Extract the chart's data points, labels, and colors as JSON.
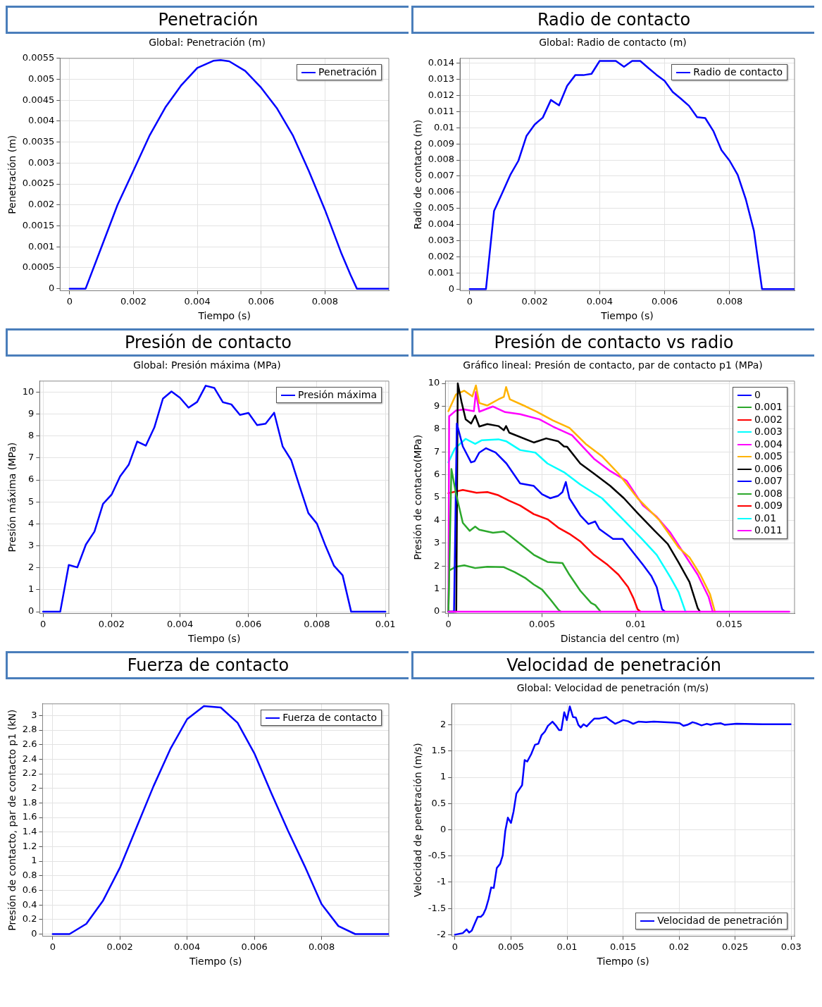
{
  "chart_data": [
    {
      "type": "line",
      "title": "Penetración",
      "subtitle": "Global: Penetración (m)",
      "xlabel": "Tiempo (s)",
      "ylabel": "Penetración (m)",
      "x": [
        0,
        0.0005,
        0.001,
        0.0015,
        0.002,
        0.0025,
        0.003,
        0.0035,
        0.004,
        0.0045,
        0.00473,
        0.005,
        0.0055,
        0.006,
        0.0065,
        0.007,
        0.0075,
        0.008,
        0.0085,
        0.0088,
        0.009,
        0.01
      ],
      "series": [
        {
          "name": "Penetración",
          "color": "#0000ff",
          "values": [
            0,
            0,
            0.001,
            0.002,
            0.00282,
            0.00365,
            0.00433,
            0.00486,
            0.00527,
            0.00544,
            0.00546,
            0.00543,
            0.0052,
            0.0048,
            0.0043,
            0.00365,
            0.0028,
            0.00188,
            0.00087,
            0.00033,
            0,
            0
          ]
        }
      ],
      "xlim": [
        -0.0003,
        0.01
      ],
      "ylim": [
        -5e-05,
        0.0055
      ],
      "xticks": [
        0,
        0.002,
        0.004,
        0.006,
        0.008
      ],
      "yticks": [
        0,
        0.0005,
        0.001,
        0.0015,
        0.002,
        0.0025,
        0.003,
        0.0035,
        0.004,
        0.0045,
        0.005,
        0.0055
      ],
      "grid": true,
      "legend": "top right",
      "marker": "none",
      "line_style": "solid"
    },
    {
      "type": "line",
      "title": "Radio de contacto",
      "subtitle": "Global: Radio de contacto (m)",
      "xlabel": "Tiempo (s)",
      "ylabel": "Radio de contacto (m)",
      "x": [
        0,
        0.0005,
        0.00075,
        0.001,
        0.00125,
        0.0015,
        0.00175,
        0.002,
        0.00225,
        0.0025,
        0.00275,
        0.003,
        0.00325,
        0.0035,
        0.00375,
        0.004,
        0.00425,
        0.0045,
        0.00475,
        0.005,
        0.00525,
        0.0055,
        0.00575,
        0.006,
        0.00625,
        0.0065,
        0.00675,
        0.007,
        0.00725,
        0.0075,
        0.00775,
        0.008,
        0.00825,
        0.0085,
        0.00875,
        0.009,
        0.01
      ],
      "series": [
        {
          "name": "Radio de contacto",
          "color": "#0000ff",
          "values": [
            0,
            0,
            0.00485,
            0.00595,
            0.00708,
            0.00796,
            0.0095,
            0.0102,
            0.01063,
            0.01172,
            0.01139,
            0.0126,
            0.01326,
            0.01326,
            0.01334,
            0.01414,
            0.01414,
            0.01414,
            0.01378,
            0.01414,
            0.01414,
            0.0137,
            0.01328,
            0.0129,
            0.01222,
            0.0118,
            0.01136,
            0.01066,
            0.0106,
            0.0098,
            0.00862,
            0.00796,
            0.00708,
            0.00557,
            0.00361,
            0,
            0
          ]
        }
      ],
      "xlim": [
        -0.0003,
        0.01
      ],
      "ylim": [
        -0.0001,
        0.0143
      ],
      "xticks": [
        0,
        0.002,
        0.004,
        0.006,
        0.008
      ],
      "yticks": [
        0,
        0.001,
        0.002,
        0.003,
        0.004,
        0.005,
        0.006,
        0.007,
        0.008,
        0.009,
        0.01,
        0.011,
        0.012,
        0.013,
        0.014
      ],
      "grid": true,
      "legend": "top right",
      "marker": "none",
      "line_style": "solid"
    },
    {
      "type": "line",
      "title": "Presión de contacto",
      "subtitle": "Global: Presión máxima (MPa)",
      "xlabel": "Tiempo (s)",
      "ylabel": "Presión máxima (MPa)",
      "x": [
        0,
        0.00025,
        0.0005,
        0.00075,
        0.001,
        0.00125,
        0.0015,
        0.00175,
        0.002,
        0.00225,
        0.0025,
        0.00275,
        0.003,
        0.00325,
        0.0035,
        0.00375,
        0.004,
        0.00425,
        0.0045,
        0.00475,
        0.005,
        0.00525,
        0.0055,
        0.00575,
        0.006,
        0.00625,
        0.0065,
        0.00675,
        0.007,
        0.00725,
        0.0075,
        0.00775,
        0.008,
        0.00825,
        0.0085,
        0.00875,
        0.009,
        0.01
      ],
      "series": [
        {
          "name": "Presión máxima",
          "color": "#0000ff",
          "values": [
            0,
            0,
            0,
            2.13,
            2.02,
            3.06,
            3.65,
            4.91,
            5.33,
            6.16,
            6.69,
            7.75,
            7.56,
            8.39,
            9.7,
            10.03,
            9.74,
            9.29,
            9.55,
            10.29,
            10.19,
            9.54,
            9.44,
            8.96,
            9.05,
            8.5,
            8.56,
            9.06,
            7.52,
            6.9,
            5.68,
            4.49,
            4.01,
            3,
            2.09,
            1.66,
            0,
            0
          ]
        }
      ],
      "xlim": [
        -0.0001,
        0.0101
      ],
      "ylim": [
        -0.08,
        10.5
      ],
      "xticks": [
        0,
        0.002,
        0.004,
        0.006,
        0.008,
        0.01
      ],
      "yticks": [
        0,
        1,
        2,
        3,
        4,
        5,
        6,
        7,
        8,
        9,
        10
      ],
      "grid": true,
      "legend": "top right",
      "marker": "none",
      "line_style": "solid"
    },
    {
      "type": "line",
      "title": "Presión de contacto vs radio",
      "subtitle": "Gráfico lineal: Presión de contacto, par de contacto p1 (MPa)",
      "xlabel": "Distancia del centro (m)",
      "ylabel": "Presión de contacto(MPa)",
      "series": [
        {
          "name": "0",
          "color": "#0000ff"
        },
        {
          "name": "0.001",
          "color": "#2ca82c",
          "x": [
            0,
            4e-05,
            0.0004,
            0.00085,
            0.00143,
            0.00208,
            0.00296,
            0.00354,
            0.00413,
            0.00456,
            0.005,
            0.00544,
            0.00587,
            0.006
          ],
          "values": [
            0,
            1.8,
            1.97,
            2.03,
            1.91,
            1.97,
            1.95,
            1.73,
            1.46,
            1.19,
            0.97,
            0.54,
            0.09,
            0
          ]
        },
        {
          "name": "0.002",
          "color": "#ff0000",
          "x": [
            0,
            0.00077,
            0.0015,
            0.00208,
            0.00267,
            0.00325,
            0.00383,
            0.00456,
            0.00529,
            0.00587,
            0.00646,
            0.00704,
            0.00777,
            0.0085,
            0.00908,
            0.00959,
            0.00988,
            0.0101,
            0.01025
          ],
          "values": [
            5.19,
            5.33,
            5.21,
            5.24,
            5.1,
            4.86,
            4.65,
            4.27,
            4.05,
            3.68,
            3.41,
            3.08,
            2.49,
            2.05,
            1.62,
            1.08,
            0.59,
            0.11,
            0
          ]
        },
        {
          "name": "0.003",
          "color": "#00ffff",
          "x": [
            0,
            0.00034,
            0.00092,
            0.00143,
            0.00179,
            0.00267,
            0.0031,
            0.00383,
            0.00464,
            0.00529,
            0.00617,
            0.00704,
            0.0082,
            0.00937,
            0.01039,
            0.01112,
            0.01185,
            0.01229,
            0.01265,
            0.0127
          ],
          "values": [
            6.54,
            7.14,
            7.57,
            7.35,
            7.51,
            7.55,
            7.46,
            7.08,
            6.97,
            6.49,
            6.11,
            5.57,
            4.97,
            4,
            3.14,
            2.49,
            1.51,
            0.86,
            0.02,
            0
          ]
        },
        {
          "name": "0.004",
          "color": "#ff00ff",
          "x": [
            0,
            4e-05,
            0.0004,
            0.00085,
            0.00136,
            0.00147,
            0.00165,
            0.00238,
            0.00303,
            0.00383,
            0.00485,
            0.00558,
            0.0066,
            0.00777,
            0.00864,
            0.00952,
            0.01039,
            0.01112,
            0.01185,
            0.01258,
            0.01331,
            0.01389,
            0.01411
          ],
          "values": [
            0,
            8.56,
            8.81,
            8.86,
            8.78,
            9.62,
            8.76,
            8.99,
            8.74,
            8.65,
            8.43,
            8.11,
            7.73,
            6.7,
            6.16,
            5.73,
            4.65,
            4.16,
            3.46,
            2.54,
            1.62,
            0.65,
            0
          ]
        },
        {
          "name": "0.005",
          "color": "#ffb300",
          "x": [
            0,
            0.0004,
            0.00085,
            0.00128,
            0.00147,
            0.00165,
            0.00208,
            0.00267,
            0.00296,
            0.00308,
            0.00328,
            0.00413,
            0.00471,
            0.00558,
            0.00646,
            0.00733,
            0.0082,
            0.00908,
            0.0101,
            0.01127,
            0.01229,
            0.01287,
            0.01345,
            0.01397,
            0.01423
          ],
          "values": [
            8.78,
            9.51,
            9.68,
            9.43,
            9.91,
            9.14,
            9.03,
            9.3,
            9.41,
            9.84,
            9.3,
            8.99,
            8.76,
            8.38,
            8.05,
            7.35,
            6.81,
            6.05,
            4.97,
            4,
            2.81,
            2.38,
            1.62,
            0.76,
            0
          ]
        },
        {
          "name": "0.006",
          "color": "#000000",
          "x": [
            0,
            0.00042,
            0.0005,
            0.0007,
            0.00092,
            0.00121,
            0.00143,
            0.00165,
            0.00208,
            0.00267,
            0.00296,
            0.00308,
            0.00325,
            0.00456,
            0.00522,
            0.00587,
            0.00617,
            0.00634,
            0.00704,
            0.00777,
            0.00864,
            0.00937,
            0.0101,
            0.01098,
            0.01171,
            0.01229,
            0.01287,
            0.01331,
            0.01343
          ],
          "values": [
            0,
            0,
            10,
            9.19,
            8.43,
            8.24,
            8.59,
            8.11,
            8.22,
            8.13,
            7.95,
            8.13,
            7.84,
            7.41,
            7.59,
            7.46,
            7.24,
            7.22,
            6.49,
            6.05,
            5.51,
            4.97,
            4.32,
            3.57,
            2.97,
            2.16,
            1.3,
            0.16,
            0
          ]
        },
        {
          "name": "0.007",
          "color": "#0000ff",
          "x": [
            0,
            0.0003,
            0.00045,
            0.00077,
            0.00121,
            0.0014,
            0.00165,
            0.00201,
            0.00252,
            0.0031,
            0.00383,
            0.00456,
            0.005,
            0.00544,
            0.00587,
            0.00609,
            0.00627,
            0.00646,
            0.00704,
            0.00748,
            0.00784,
            0.00806,
            0.00879,
            0.0093,
            0.00966,
            0.01039,
            0.01083,
            0.01112,
            0.01141,
            0.01156
          ],
          "values": [
            0,
            0,
            8.24,
            7.24,
            6.54,
            6.59,
            6.97,
            7.16,
            6.97,
            6.49,
            5.62,
            5.51,
            5.14,
            4.97,
            5.08,
            5.24,
            5.68,
            4.97,
            4.22,
            3.84,
            3.95,
            3.62,
            3.19,
            3.19,
            2.81,
            2.05,
            1.57,
            1.08,
            0.11,
            0
          ]
        },
        {
          "name": "0.008",
          "color": "#2ca82c",
          "x": [
            0,
            0.00016,
            0.0004,
            0.00077,
            0.00114,
            0.00143,
            0.00165,
            0.00238,
            0.00296,
            0.00325,
            0.00383,
            0.00456,
            0.00529,
            0.00609,
            0.00646,
            0.00704,
            0.00762,
            0.00784,
            0.00813
          ],
          "values": [
            0,
            6.25,
            5.19,
            3.89,
            3.54,
            3.73,
            3.59,
            3.46,
            3.51,
            3.35,
            2.97,
            2.49,
            2.18,
            2.13,
            1.62,
            0.92,
            0.38,
            0.29,
            0
          ]
        },
        {
          "name": "0.009",
          "color": "#ff0000"
        },
        {
          "name": "0.01",
          "color": "#00ffff"
        },
        {
          "name": "0.011",
          "color": "#ff00ff",
          "x": [
            0,
            0.0182
          ],
          "values": [
            0,
            0
          ]
        }
      ],
      "xlim": [
        -0.00016,
        0.01848
      ],
      "ylim": [
        -0.08,
        10.1
      ],
      "xticks": [
        0,
        0.005,
        0.01,
        0.015
      ],
      "yticks": [
        0,
        1,
        2,
        3,
        4,
        5,
        6,
        7,
        8,
        9,
        10
      ],
      "grid": true,
      "legend": "top right",
      "marker": "none",
      "line_style": "solid"
    },
    {
      "type": "line",
      "title": "Fuerza de contacto",
      "xlabel": "Tiempo (s)",
      "ylabel": "Presión de contacto, par de contacto p1 (kN)",
      "x": [
        0,
        0.0005,
        0.001,
        0.0015,
        0.002,
        0.0025,
        0.003,
        0.0035,
        0.004,
        0.0045,
        0.005,
        0.0055,
        0.006,
        0.0065,
        0.007,
        0.0075,
        0.008,
        0.0085,
        0.009,
        0.01
      ],
      "series": [
        {
          "name": "Fuerza de contacto",
          "color": "#0000ff",
          "values": [
            0,
            0,
            0.14,
            0.46,
            0.91,
            1.47,
            2.03,
            2.54,
            2.95,
            3.13,
            3.11,
            2.9,
            2.48,
            1.94,
            1.42,
            0.93,
            0.41,
            0.11,
            0,
            0
          ]
        }
      ],
      "xlim": [
        -0.0003,
        0.01
      ],
      "ylim": [
        -0.03,
        3.16
      ],
      "xticks": [
        0,
        0.002,
        0.004,
        0.006,
        0.008
      ],
      "yticks": [
        0,
        0.2,
        0.4,
        0.6,
        0.8,
        1,
        1.2,
        1.4,
        1.6,
        1.8,
        2,
        2.2,
        2.4,
        2.6,
        2.8,
        3
      ],
      "grid": true,
      "legend": "top right",
      "marker": "none",
      "line_style": "solid"
    },
    {
      "type": "line",
      "title": "Velocidad de penetración",
      "subtitle": "Global: Velocidad de penetración (m/s)",
      "xlabel": "Tiempo (s)",
      "ylabel": "Velocidad de penetración (m/s)",
      "x": [
        0,
        0.0007,
        0.00104,
        0.00127,
        0.0015,
        0.00184,
        0.00203,
        0.0023,
        0.00253,
        0.00276,
        0.003,
        0.00323,
        0.00346,
        0.00373,
        0.00403,
        0.00426,
        0.00449,
        0.00472,
        0.005,
        0.00523,
        0.00548,
        0.00599,
        0.00622,
        0.00645,
        0.0068,
        0.00714,
        0.00744,
        0.00772,
        0.00802,
        0.00829,
        0.0087,
        0.00899,
        0.00929,
        0.00949,
        0.00975,
        0.00998,
        0.01025,
        0.01053,
        0.01078,
        0.01101,
        0.01122,
        0.01147,
        0.01175,
        0.0121,
        0.01244,
        0.0129,
        0.01348,
        0.01382,
        0.01429,
        0.01463,
        0.01502,
        0.01544,
        0.0159,
        0.01636,
        0.01705,
        0.01774,
        0.01866,
        0.01959,
        0.02005,
        0.02039,
        0.02074,
        0.0212,
        0.02154,
        0.022,
        0.02247,
        0.02281,
        0.02316,
        0.02373,
        0.02408,
        0.02512,
        0.02742,
        0.02995
      ],
      "series": [
        {
          "name": "Velocidad de penetración",
          "color": "#0000ff",
          "values": [
            -2,
            -1.97,
            -1.9,
            -1.96,
            -1.92,
            -1.75,
            -1.66,
            -1.66,
            -1.61,
            -1.5,
            -1.32,
            -1.1,
            -1.11,
            -0.73,
            -0.65,
            -0.49,
            -0.02,
            0.23,
            0.13,
            0.35,
            0.69,
            0.85,
            1.33,
            1.3,
            1.44,
            1.62,
            1.64,
            1.8,
            1.87,
            1.98,
            2.06,
            1.99,
            1.9,
            1.9,
            2.24,
            2.09,
            2.35,
            2.15,
            2.14,
            2,
            1.95,
            2.01,
            1.97,
            2.05,
            2.12,
            2.12,
            2.15,
            2.09,
            2.02,
            2.05,
            2.09,
            2.07,
            2.02,
            2.06,
            2.05,
            2.06,
            2.05,
            2.04,
            2.03,
            1.98,
            2,
            2.05,
            2.03,
            1.99,
            2.02,
            2,
            2.02,
            2.03,
            2,
            2.02,
            2.01,
            2.01
          ]
        }
      ],
      "xlim": [
        -0.0003,
        0.0303
      ],
      "ylim": [
        -2.03,
        2.4
      ],
      "xticks": [
        0,
        0.005,
        0.01,
        0.015,
        0.02,
        0.025,
        0.03
      ],
      "yticks": [
        -2,
        -1.5,
        -1,
        -0.5,
        0,
        0.5,
        1,
        1.5,
        2
      ],
      "grid": true,
      "legend": "bottom right",
      "marker": "none",
      "line_style": "solid"
    }
  ]
}
